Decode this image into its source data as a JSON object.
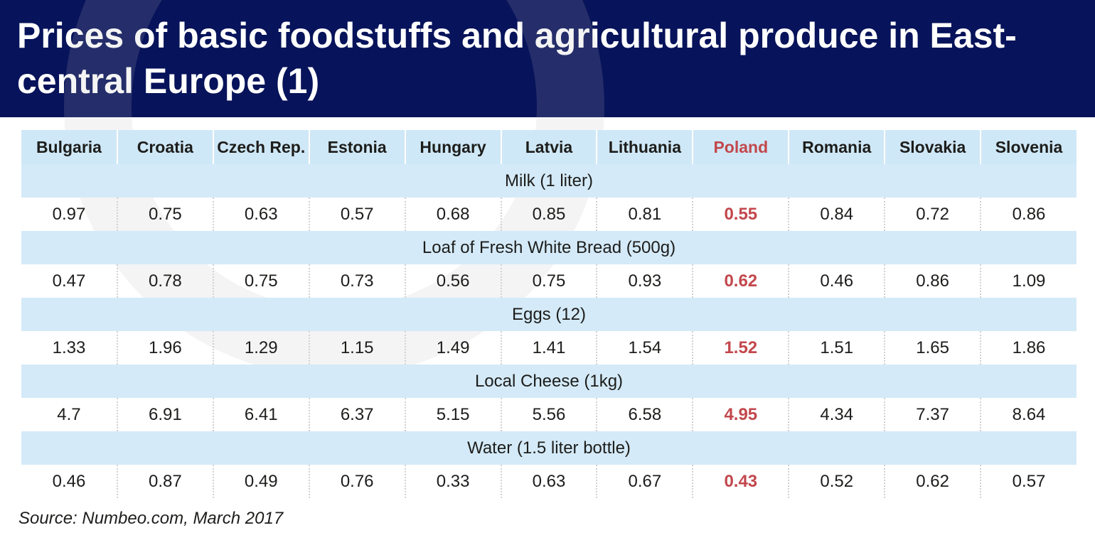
{
  "title": "Prices of basic foodstuffs and agricultural produce in East-central Europe (1)",
  "source": "Source: Numbeo.com, March 2017",
  "colors": {
    "header_background": "#07135a",
    "category_row_background": "#d4eaf8",
    "highlight": "#c2474c"
  },
  "chart_data": {
    "type": "table",
    "highlighted_column": "Poland",
    "columns": [
      "Bulgaria",
      "Croatia",
      "Czech Rep.",
      "Estonia",
      "Hungary",
      "Latvia",
      "Lithuania",
      "Poland",
      "Romania",
      "Slovakia",
      "Slovenia"
    ],
    "rows": [
      {
        "category": "Milk (1 liter)",
        "values": [
          "0.97",
          "0.75",
          "0.63",
          "0.57",
          "0.68",
          "0.85",
          "0.81",
          "0.55",
          "0.84",
          "0.72",
          "0.86"
        ]
      },
      {
        "category": "Loaf of Fresh White Bread (500g)",
        "values": [
          "0.47",
          "0.78",
          "0.75",
          "0.73",
          "0.56",
          "0.75",
          "0.93",
          "0.62",
          "0.46",
          "0.86",
          "1.09"
        ]
      },
      {
        "category": "Eggs (12)",
        "values": [
          "1.33",
          "1.96",
          "1.29",
          "1.15",
          "1.49",
          "1.41",
          "1.54",
          "1.52",
          "1.51",
          "1.65",
          "1.86"
        ]
      },
      {
        "category": "Local Cheese (1kg)",
        "values": [
          "4.7",
          "6.91",
          "6.41",
          "6.37",
          "5.15",
          "5.56",
          "6.58",
          "4.95",
          "4.34",
          "7.37",
          "8.64"
        ]
      },
      {
        "category": "Water (1.5 liter bottle)",
        "values": [
          "0.46",
          "0.87",
          "0.49",
          "0.76",
          "0.33",
          "0.63",
          "0.67",
          "0.43",
          "0.52",
          "0.62",
          "0.57"
        ]
      }
    ]
  }
}
